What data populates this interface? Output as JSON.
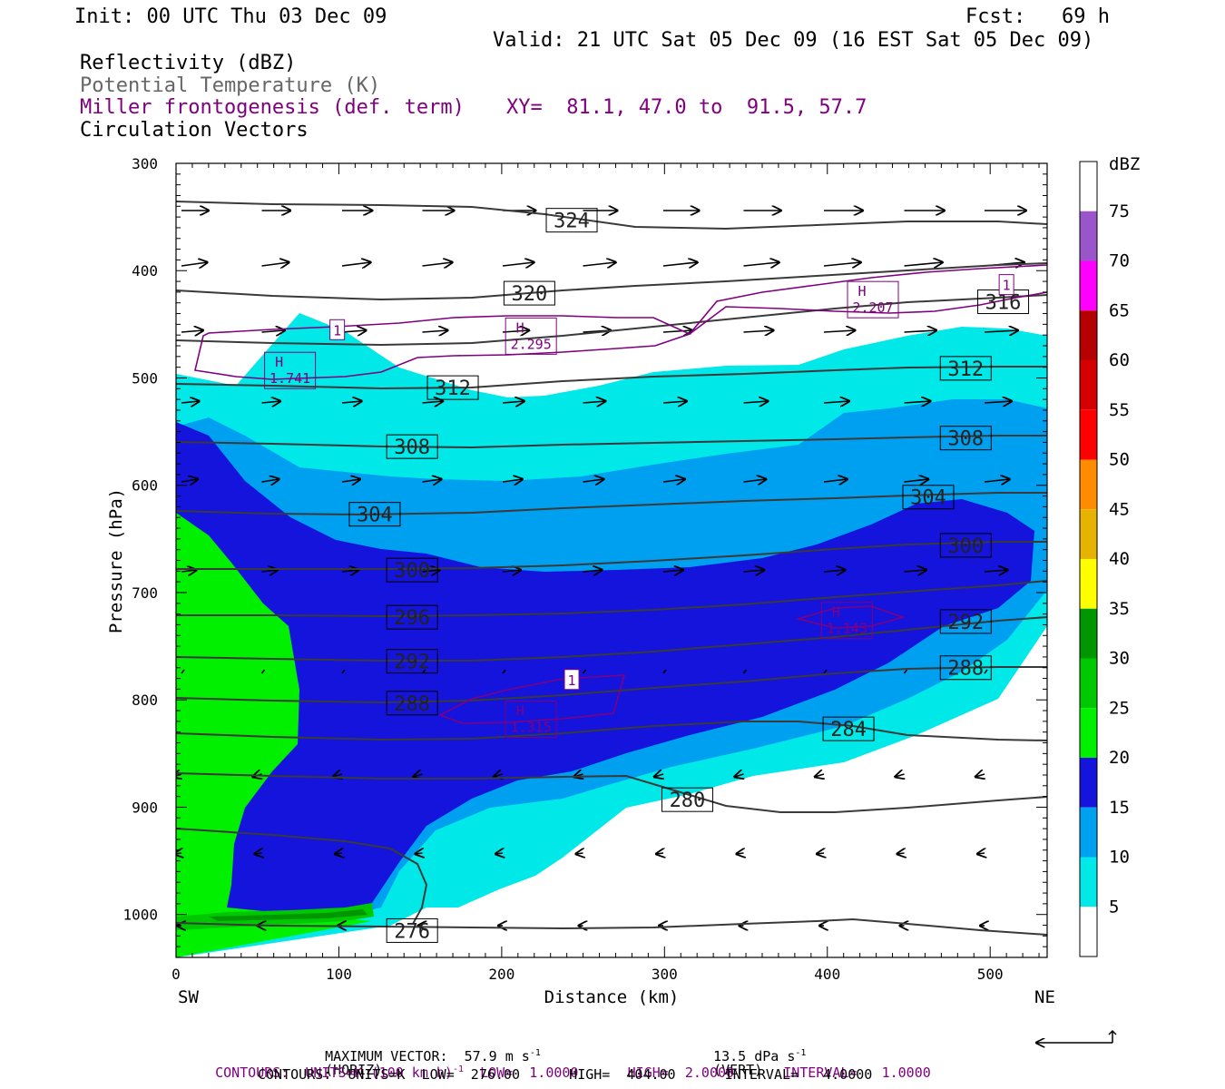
{
  "header": {
    "init": "Init: 00 UTC Thu 03 Dec 09",
    "fcst": "Fcst:   69 h",
    "valid": "Valid: 21 UTC Sat 05 Dec 09 (16 EST Sat 05 Dec 09)"
  },
  "fields": {
    "reflectivity": "Reflectivity (dBZ)",
    "potential_temperature": "Potential Temperature (K)",
    "miller": "Miller frontogenesis (def. term)",
    "xy": "XY=  81.1, 47.0 to  91.5, 57.7",
    "circulation": "Circulation Vectors"
  },
  "footer": {
    "max_vector_label": "MAXIMUM VECTOR:  57.9 m s",
    "max_vector_horiz": "(HORIZ)",
    "max_vector_vert": "13.5 dPa s",
    "max_vector_vert_tag": "(VERT)",
    "exponent": "-1",
    "contours_miller_a": "CONTOURS:  UNITS=K (100 km h)",
    "contours_miller_b": "  LOW=  1.0000      HIGH=  2.0000      INTERVAL=   1.0000",
    "contours_theta": "CONTOURS:  UNITS=K  LOW=  276.00      HIGH=  404.00      INTERVAL=   4.0000"
  },
  "colors": {
    "reflectivity": [
      "#ffffff",
      "#00e8e8",
      "#00a0f0",
      "#1414dc",
      "#00f000",
      "#00c800",
      "#009600",
      "#ffff00",
      "#e6b400",
      "#ff8c00",
      "#ff0000",
      "#d60000",
      "#b40000",
      "#ff00ff",
      "#9955c9"
    ],
    "theta_line": "#3a3a3a",
    "miller": "#800080",
    "text": "#000000"
  },
  "chart_data": {
    "type": "cross-section",
    "xlabel": "Distance (km)",
    "ylabel": "Pressure (hPa)",
    "xlim": [
      0,
      535
    ],
    "ylim": [
      1040,
      300
    ],
    "x_ticks": [
      "0",
      "100",
      "200",
      "300",
      "400",
      "500"
    ],
    "y_ticks": [
      "300",
      "400",
      "500",
      "600",
      "700",
      "800",
      "900",
      "1000"
    ],
    "x_end_labels": {
      "left": "SW",
      "right": "NE"
    },
    "colorbar": {
      "unit": "dBZ",
      "labels": [
        "5",
        "10",
        "15",
        "20",
        "25",
        "30",
        "35",
        "40",
        "45",
        "50",
        "55",
        "60",
        "65",
        "70",
        "75"
      ]
    },
    "theta_contour_labels": [
      {
        "value": "324",
        "x": 243,
        "p": 353
      },
      {
        "value": "320",
        "x": 217,
        "p": 421
      },
      {
        "value": "316",
        "x": 508,
        "p": 429
      },
      {
        "value": "312",
        "x": 170,
        "p": 509
      },
      {
        "value": "312",
        "x": 485,
        "p": 491
      },
      {
        "value": "308",
        "x": 145,
        "p": 564
      },
      {
        "value": "308",
        "x": 485,
        "p": 556
      },
      {
        "value": "304",
        "x": 122,
        "p": 627
      },
      {
        "value": "304",
        "x": 462,
        "p": 611
      },
      {
        "value": "300",
        "x": 145,
        "p": 679
      },
      {
        "value": "300",
        "x": 485,
        "p": 656
      },
      {
        "value": "296",
        "x": 145,
        "p": 723
      },
      {
        "value": "292",
        "x": 145,
        "p": 764
      },
      {
        "value": "292",
        "x": 485,
        "p": 727
      },
      {
        "value": "288",
        "x": 145,
        "p": 803
      },
      {
        "value": "288",
        "x": 485,
        "p": 770
      },
      {
        "value": "284",
        "x": 413,
        "p": 827
      },
      {
        "value": "280",
        "x": 314,
        "p": 893
      },
      {
        "value": "276",
        "x": 145,
        "p": 1015
      }
    ],
    "miller_maxima": [
      {
        "label": "H",
        "value": "1.741",
        "x": 70,
        "p": 493
      },
      {
        "label": "H",
        "value": "2.295",
        "x": 218,
        "p": 461
      },
      {
        "label": "H",
        "value": "2.207",
        "x": 428,
        "p": 427
      },
      {
        "label": "H",
        "value": "1.143",
        "x": 412,
        "p": 726
      },
      {
        "label": "H",
        "value": "1.315",
        "x": 218,
        "p": 818
      }
    ],
    "miller_contour_labels": [
      {
        "value": "1",
        "x": 99,
        "p": 455
      },
      {
        "value": "1",
        "x": 510,
        "p": 413
      },
      {
        "value": "1",
        "x": 243,
        "p": 781
      }
    ]
  }
}
